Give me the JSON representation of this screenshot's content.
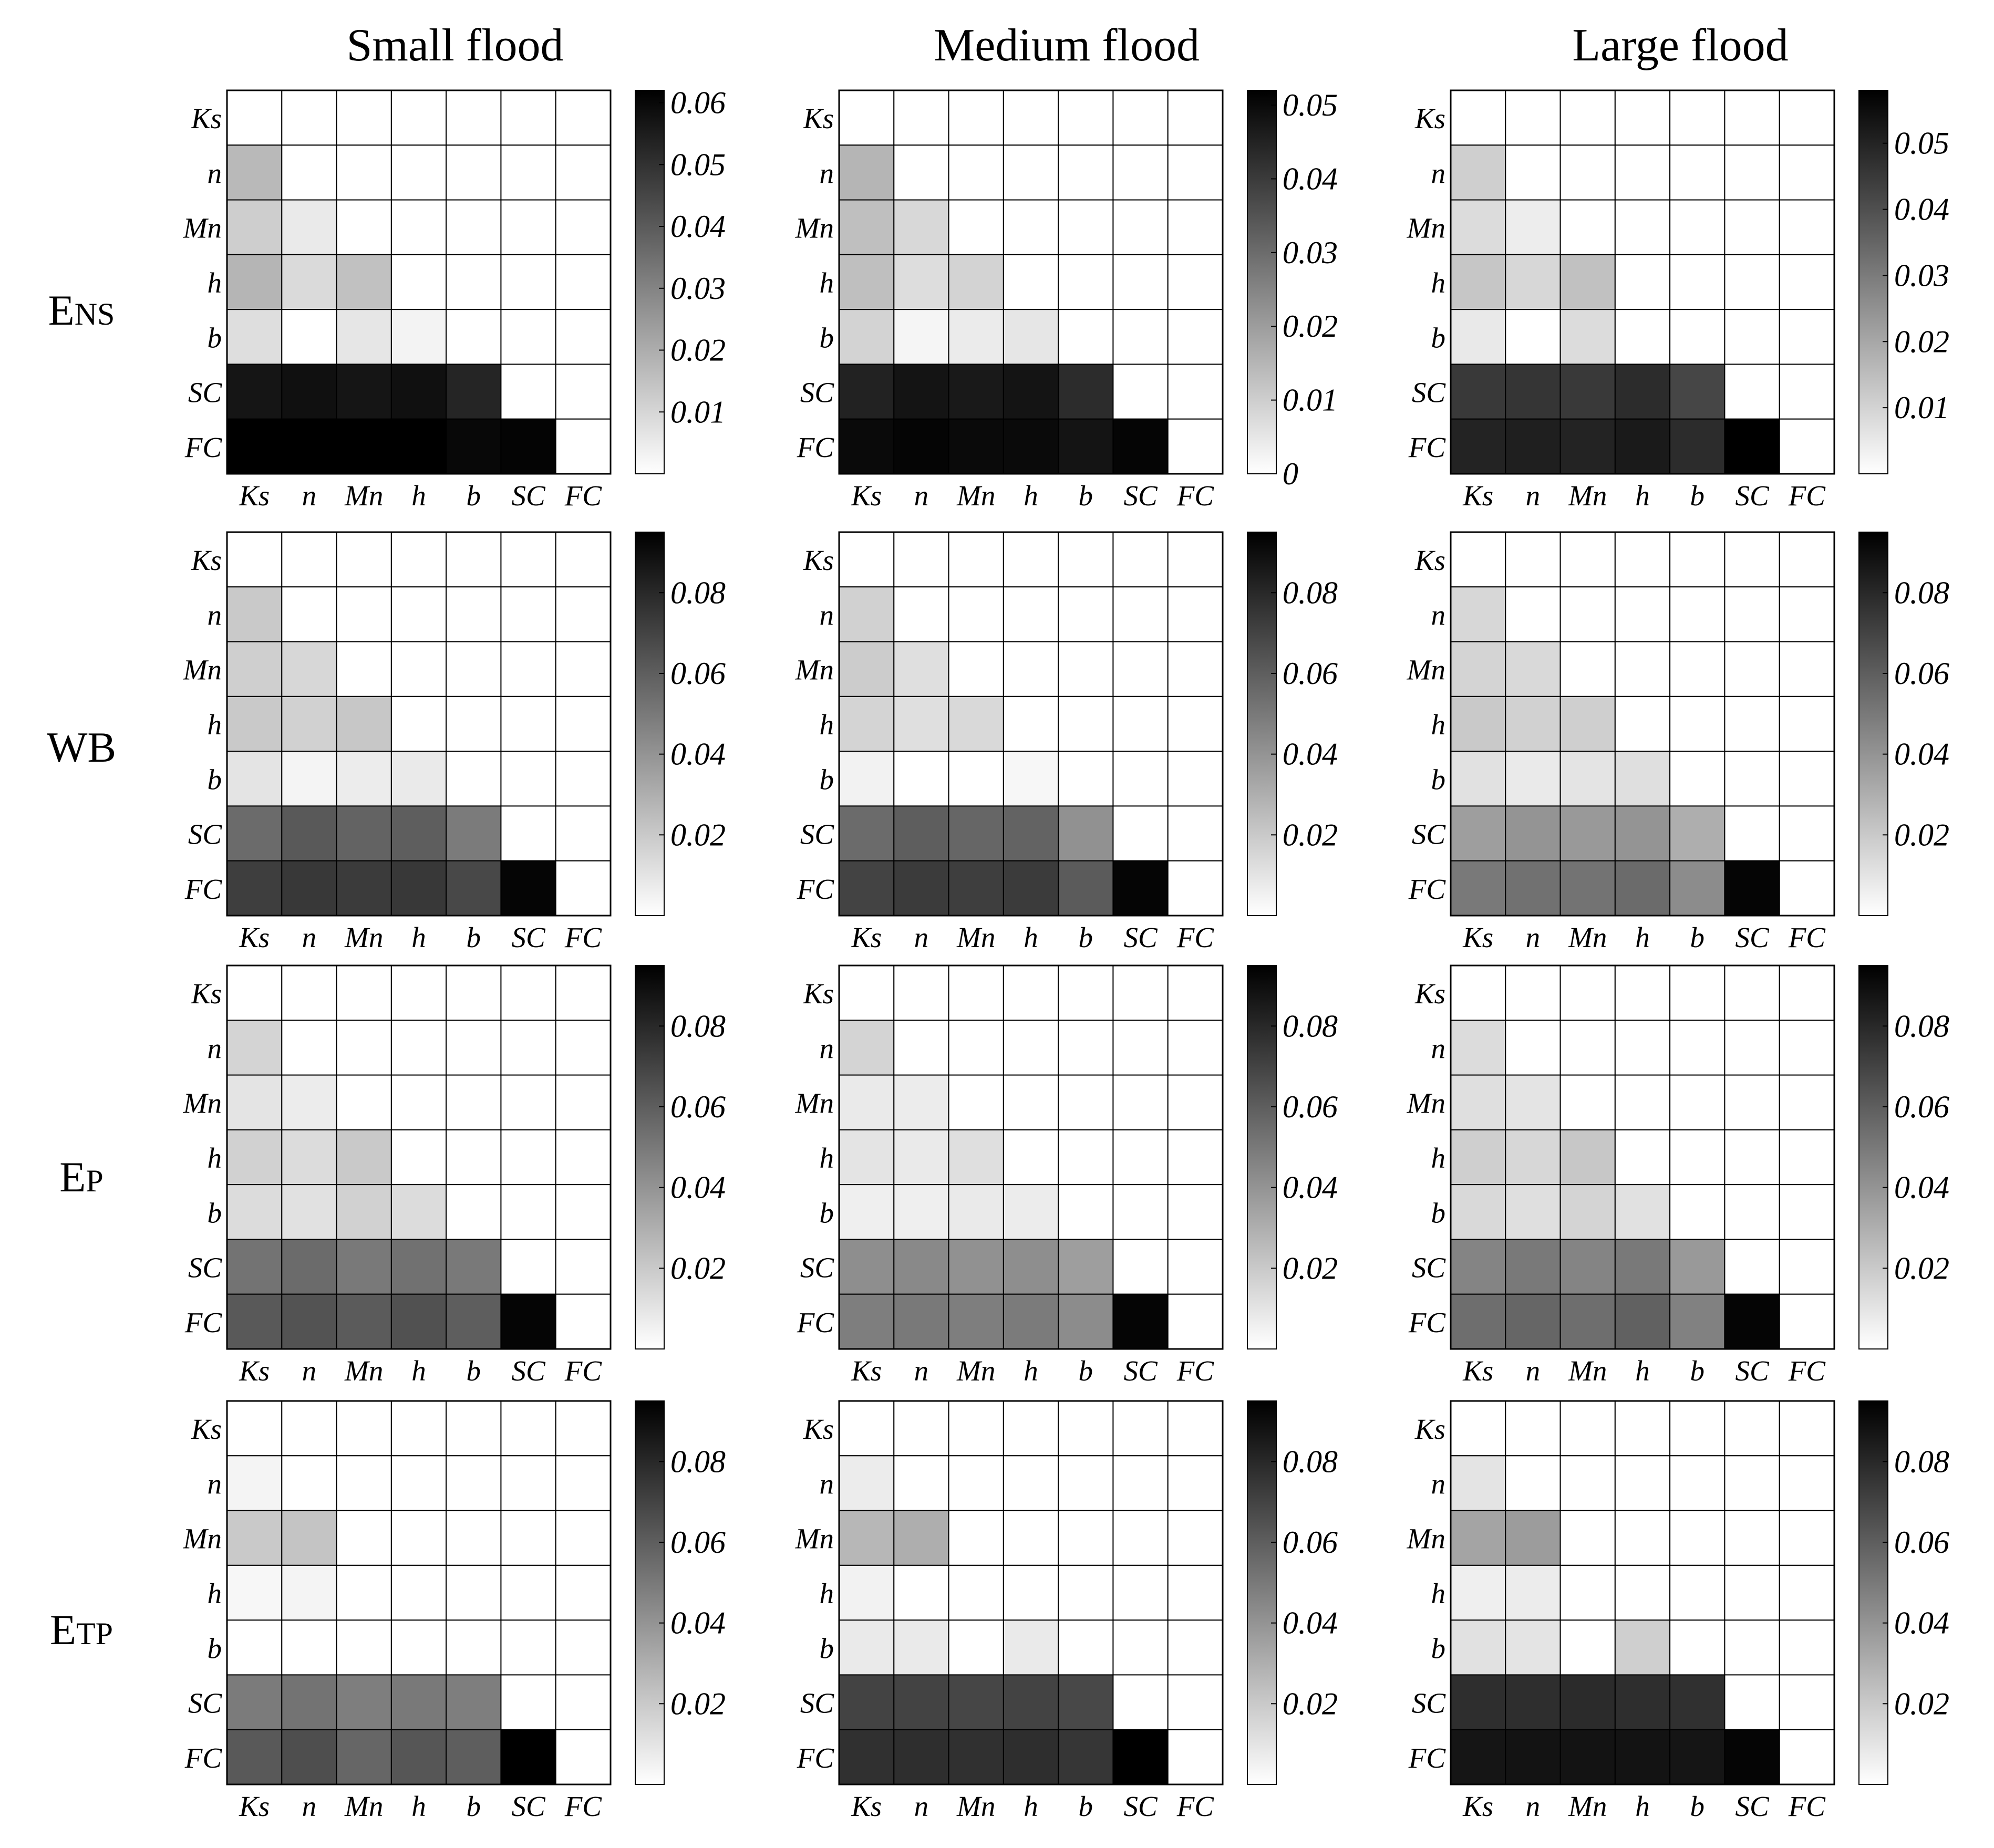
{
  "figure": {
    "column_titles": [
      "Small flood",
      "Medium flood",
      "Large flood"
    ],
    "row_titles": [
      {
        "main": "E",
        "sub": "NS"
      },
      {
        "main": "WB",
        "sub": ""
      },
      {
        "main": "E",
        "sub": "P"
      },
      {
        "main": "E",
        "sub": "TP"
      }
    ]
  },
  "chart_data": [
    {
      "type": "heatmap",
      "row": "ENS",
      "column": "Small flood",
      "labels": [
        "Ks",
        "n",
        "Mn",
        "h",
        "b",
        "SC",
        "FC"
      ],
      "colorbar": {
        "range": [
          0,
          0.062
        ],
        "ticks": [
          "0.01",
          "0.02",
          "0.03",
          "0.04",
          "0.05",
          "0.06"
        ]
      },
      "matrix": [
        [
          0,
          0,
          0,
          0,
          0,
          0,
          0
        ],
        [
          0.017,
          0,
          0,
          0,
          0,
          0,
          0
        ],
        [
          0.012,
          0.005,
          0,
          0,
          0,
          0,
          0
        ],
        [
          0.018,
          0.009,
          0.015,
          0,
          0,
          0,
          0
        ],
        [
          0.008,
          0,
          0.006,
          0.003,
          0,
          0,
          0
        ],
        [
          0.057,
          0.058,
          0.057,
          0.058,
          0.053,
          0,
          0
        ],
        [
          0.062,
          0.062,
          0.062,
          0.062,
          0.06,
          0.061,
          0
        ]
      ]
    },
    {
      "type": "heatmap",
      "row": "ENS",
      "column": "Medium flood",
      "labels": [
        "Ks",
        "n",
        "Mn",
        "h",
        "b",
        "SC",
        "FC"
      ],
      "colorbar": {
        "range": [
          0,
          0.052
        ],
        "ticks": [
          "0",
          "0.01",
          "0.02",
          "0.03",
          "0.04",
          "0.05"
        ]
      },
      "matrix": [
        [
          0,
          0,
          0,
          0,
          0,
          0,
          0
        ],
        [
          0.015,
          0,
          0,
          0,
          0,
          0,
          0
        ],
        [
          0.013,
          0.008,
          0,
          0,
          0,
          0,
          0
        ],
        [
          0.013,
          0.007,
          0.009,
          0,
          0,
          0,
          0
        ],
        [
          0.009,
          0.002,
          0.004,
          0.005,
          0,
          0,
          0
        ],
        [
          0.045,
          0.048,
          0.047,
          0.048,
          0.043,
          0,
          0
        ],
        [
          0.05,
          0.051,
          0.05,
          0.05,
          0.048,
          0.051,
          0
        ]
      ]
    },
    {
      "type": "heatmap",
      "row": "ENS",
      "column": "Large flood",
      "labels": [
        "Ks",
        "n",
        "Mn",
        "h",
        "b",
        "SC",
        "FC"
      ],
      "colorbar": {
        "range": [
          0,
          0.058
        ],
        "ticks": [
          "0.01",
          "0.02",
          "0.03",
          "0.04",
          "0.05"
        ]
      },
      "matrix": [
        [
          0,
          0,
          0,
          0,
          0,
          0,
          0
        ],
        [
          0.011,
          0,
          0,
          0,
          0,
          0,
          0
        ],
        [
          0.008,
          0.004,
          0,
          0,
          0,
          0,
          0
        ],
        [
          0.013,
          0.009,
          0.014,
          0,
          0,
          0,
          0
        ],
        [
          0.005,
          0,
          0.008,
          0,
          0,
          0,
          0
        ],
        [
          0.045,
          0.046,
          0.045,
          0.048,
          0.042,
          0,
          0
        ],
        [
          0.05,
          0.051,
          0.05,
          0.052,
          0.048,
          0.058,
          0
        ]
      ]
    },
    {
      "type": "heatmap",
      "row": "WB",
      "column": "Small flood",
      "labels": [
        "Ks",
        "n",
        "Mn",
        "h",
        "b",
        "SC",
        "FC"
      ],
      "colorbar": {
        "range": [
          0,
          0.095
        ],
        "ticks": [
          "0.02",
          "0.04",
          "0.06",
          "0.08"
        ]
      },
      "matrix": [
        [
          0,
          0,
          0,
          0,
          0,
          0,
          0
        ],
        [
          0.02,
          0,
          0,
          0,
          0,
          0,
          0
        ],
        [
          0.018,
          0.015,
          0,
          0,
          0,
          0,
          0
        ],
        [
          0.02,
          0.017,
          0.021,
          0,
          0,
          0,
          0
        ],
        [
          0.01,
          0.004,
          0.007,
          0.008,
          0,
          0,
          0
        ],
        [
          0.055,
          0.062,
          0.058,
          0.06,
          0.049,
          0,
          0
        ],
        [
          0.072,
          0.074,
          0.073,
          0.074,
          0.068,
          0.093,
          0
        ]
      ]
    },
    {
      "type": "heatmap",
      "row": "WB",
      "column": "Medium flood",
      "labels": [
        "Ks",
        "n",
        "Mn",
        "h",
        "b",
        "SC",
        "FC"
      ],
      "colorbar": {
        "range": [
          0,
          0.095
        ],
        "ticks": [
          "0.02",
          "0.04",
          "0.06",
          "0.08"
        ]
      },
      "matrix": [
        [
          0,
          0,
          0,
          0,
          0,
          0,
          0
        ],
        [
          0.017,
          0,
          0,
          0,
          0,
          0,
          0
        ],
        [
          0.019,
          0.012,
          0,
          0,
          0,
          0,
          0
        ],
        [
          0.016,
          0.012,
          0.014,
          0,
          0,
          0,
          0
        ],
        [
          0.005,
          0,
          0,
          0.003,
          0,
          0,
          0
        ],
        [
          0.055,
          0.06,
          0.057,
          0.058,
          0.041,
          0,
          0
        ],
        [
          0.07,
          0.073,
          0.072,
          0.073,
          0.061,
          0.093,
          0
        ]
      ]
    },
    {
      "type": "heatmap",
      "row": "WB",
      "column": "Large flood",
      "labels": [
        "Ks",
        "n",
        "Mn",
        "h",
        "b",
        "SC",
        "FC"
      ],
      "colorbar": {
        "range": [
          0,
          0.095
        ],
        "ticks": [
          "0.02",
          "0.04",
          "0.06",
          "0.08"
        ]
      },
      "matrix": [
        [
          0,
          0,
          0,
          0,
          0,
          0,
          0
        ],
        [
          0.015,
          0,
          0,
          0,
          0,
          0,
          0
        ],
        [
          0.016,
          0.014,
          0,
          0,
          0,
          0,
          0
        ],
        [
          0.02,
          0.017,
          0.018,
          0,
          0,
          0,
          0
        ],
        [
          0.011,
          0.008,
          0.01,
          0.012,
          0,
          0,
          0
        ],
        [
          0.036,
          0.04,
          0.038,
          0.04,
          0.03,
          0,
          0
        ],
        [
          0.05,
          0.053,
          0.052,
          0.055,
          0.043,
          0.093,
          0
        ]
      ]
    },
    {
      "type": "heatmap",
      "row": "EP",
      "column": "Small flood",
      "labels": [
        "Ks",
        "n",
        "Mn",
        "h",
        "b",
        "SC",
        "FC"
      ],
      "colorbar": {
        "range": [
          0,
          0.095
        ],
        "ticks": [
          "0.02",
          "0.04",
          "0.06",
          "0.08"
        ]
      },
      "matrix": [
        [
          0,
          0,
          0,
          0,
          0,
          0,
          0
        ],
        [
          0.016,
          0,
          0,
          0,
          0,
          0,
          0
        ],
        [
          0.01,
          0.007,
          0,
          0,
          0,
          0,
          0
        ],
        [
          0.017,
          0.013,
          0.02,
          0,
          0,
          0,
          0
        ],
        [
          0.013,
          0.011,
          0.017,
          0.013,
          0,
          0,
          0
        ],
        [
          0.052,
          0.055,
          0.05,
          0.053,
          0.05,
          0,
          0
        ],
        [
          0.062,
          0.064,
          0.061,
          0.065,
          0.06,
          0.093,
          0
        ]
      ]
    },
    {
      "type": "heatmap",
      "row": "EP",
      "column": "Medium flood",
      "labels": [
        "Ks",
        "n",
        "Mn",
        "h",
        "b",
        "SC",
        "FC"
      ],
      "colorbar": {
        "range": [
          0,
          0.095
        ],
        "ticks": [
          "0.02",
          "0.04",
          "0.06",
          "0.08"
        ]
      },
      "matrix": [
        [
          0,
          0,
          0,
          0,
          0,
          0,
          0
        ],
        [
          0.016,
          0,
          0,
          0,
          0,
          0,
          0
        ],
        [
          0.008,
          0.007,
          0,
          0,
          0,
          0,
          0
        ],
        [
          0.01,
          0.008,
          0.012,
          0,
          0,
          0,
          0
        ],
        [
          0.006,
          0.006,
          0.008,
          0.007,
          0,
          0,
          0
        ],
        [
          0.042,
          0.044,
          0.041,
          0.042,
          0.036,
          0,
          0
        ],
        [
          0.048,
          0.05,
          0.048,
          0.049,
          0.043,
          0.093,
          0
        ]
      ]
    },
    {
      "type": "heatmap",
      "row": "EP",
      "column": "Large flood",
      "labels": [
        "Ks",
        "n",
        "Mn",
        "h",
        "b",
        "SC",
        "FC"
      ],
      "colorbar": {
        "range": [
          0,
          0.095
        ],
        "ticks": [
          "0.02",
          "0.04",
          "0.06",
          "0.08"
        ]
      },
      "matrix": [
        [
          0,
          0,
          0,
          0,
          0,
          0,
          0
        ],
        [
          0.013,
          0,
          0,
          0,
          0,
          0,
          0
        ],
        [
          0.012,
          0.01,
          0,
          0,
          0,
          0,
          0
        ],
        [
          0.018,
          0.015,
          0.021,
          0,
          0,
          0,
          0
        ],
        [
          0.014,
          0.012,
          0.016,
          0.011,
          0,
          0,
          0
        ],
        [
          0.046,
          0.05,
          0.046,
          0.05,
          0.038,
          0,
          0
        ],
        [
          0.054,
          0.057,
          0.054,
          0.059,
          0.047,
          0.093,
          0
        ]
      ]
    },
    {
      "type": "heatmap",
      "row": "ETP",
      "column": "Small flood",
      "labels": [
        "Ks",
        "n",
        "Mn",
        "h",
        "b",
        "SC",
        "FC"
      ],
      "colorbar": {
        "range": [
          0,
          0.095
        ],
        "ticks": [
          "0.02",
          "0.04",
          "0.06",
          "0.08"
        ]
      },
      "matrix": [
        [
          0,
          0,
          0,
          0,
          0,
          0,
          0
        ],
        [
          0.004,
          0,
          0,
          0,
          0,
          0,
          0
        ],
        [
          0.02,
          0.022,
          0,
          0,
          0,
          0,
          0
        ],
        [
          0.003,
          0.004,
          0,
          0,
          0,
          0,
          0
        ],
        [
          0,
          0,
          0,
          0,
          0,
          0,
          0
        ],
        [
          0.049,
          0.052,
          0.048,
          0.05,
          0.048,
          0,
          0
        ],
        [
          0.062,
          0.066,
          0.057,
          0.063,
          0.06,
          0.095,
          0
        ]
      ]
    },
    {
      "type": "heatmap",
      "row": "ETP",
      "column": "Medium flood",
      "labels": [
        "Ks",
        "n",
        "Mn",
        "h",
        "b",
        "SC",
        "FC"
      ],
      "colorbar": {
        "range": [
          0,
          0.095
        ],
        "ticks": [
          "0.02",
          "0.04",
          "0.06",
          "0.08"
        ]
      },
      "matrix": [
        [
          0,
          0,
          0,
          0,
          0,
          0,
          0
        ],
        [
          0.007,
          0,
          0,
          0,
          0,
          0,
          0
        ],
        [
          0.027,
          0.03,
          0,
          0,
          0,
          0,
          0
        ],
        [
          0.005,
          0,
          0,
          0,
          0,
          0,
          0
        ],
        [
          0.008,
          0.008,
          0,
          0.008,
          0,
          0,
          0
        ],
        [
          0.07,
          0.07,
          0.069,
          0.07,
          0.068,
          0,
          0
        ],
        [
          0.077,
          0.078,
          0.077,
          0.078,
          0.075,
          0.095,
          0
        ]
      ]
    },
    {
      "type": "heatmap",
      "row": "ETP",
      "column": "Large flood",
      "labels": [
        "Ks",
        "n",
        "Mn",
        "h",
        "b",
        "SC",
        "FC"
      ],
      "colorbar": {
        "range": [
          0,
          0.095
        ],
        "ticks": [
          "0.02",
          "0.04",
          "0.06",
          "0.08"
        ]
      },
      "matrix": [
        [
          0,
          0,
          0,
          0,
          0,
          0,
          0
        ],
        [
          0.01,
          0,
          0,
          0,
          0,
          0,
          0
        ],
        [
          0.034,
          0.037,
          0,
          0,
          0,
          0,
          0
        ],
        [
          0.006,
          0.007,
          0,
          0,
          0,
          0,
          0
        ],
        [
          0.011,
          0.01,
          0,
          0.018,
          0,
          0,
          0
        ],
        [
          0.078,
          0.078,
          0.079,
          0.078,
          0.077,
          0,
          0
        ],
        [
          0.087,
          0.088,
          0.088,
          0.088,
          0.087,
          0.093,
          0
        ]
      ]
    }
  ]
}
